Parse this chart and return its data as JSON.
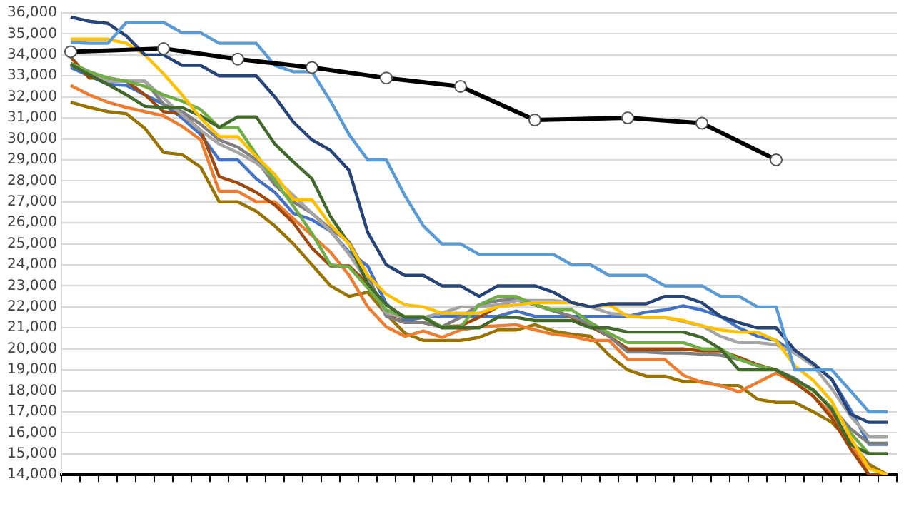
{
  "chart_data": {
    "type": "line",
    "categories": [
      null,
      null,
      null,
      null,
      null,
      null,
      null,
      null,
      null,
      null,
      null,
      null,
      null,
      null,
      null,
      null,
      null,
      null,
      null,
      null,
      null,
      null,
      null,
      null,
      null,
      null,
      null,
      null,
      null,
      null,
      null,
      null,
      null,
      null,
      null,
      null,
      null,
      null,
      null,
      null,
      null,
      null,
      null,
      null,
      null
    ],
    "ylim": [
      14000,
      36000
    ],
    "yticks": [
      {
        "value": 14000,
        "label": "14,000"
      },
      {
        "value": 15000,
        "label": "15,000"
      },
      {
        "value": 16000,
        "label": "16,000"
      },
      {
        "value": 17000,
        "label": "17,000"
      },
      {
        "value": 18000,
        "label": "18,000"
      },
      {
        "value": 19000,
        "label": "19,000"
      },
      {
        "value": 20000,
        "label": "20,000"
      },
      {
        "value": 21000,
        "label": "21,000"
      },
      {
        "value": 22000,
        "label": "22,000"
      },
      {
        "value": 23000,
        "label": "23,000"
      },
      {
        "value": 24000,
        "label": "24,000"
      },
      {
        "value": 25000,
        "label": "25,000"
      },
      {
        "value": 26000,
        "label": "26,000"
      },
      {
        "value": 27000,
        "label": "27,000"
      },
      {
        "value": 28000,
        "label": "28,000"
      },
      {
        "value": 29000,
        "label": "29,000"
      },
      {
        "value": 30000,
        "label": "30,000"
      },
      {
        "value": 31000,
        "label": "31,000"
      },
      {
        "value": 32000,
        "label": "32,000"
      },
      {
        "value": 33000,
        "label": "33,000"
      },
      {
        "value": 34000,
        "label": "34,000"
      },
      {
        "value": 35000,
        "label": "35,000"
      },
      {
        "value": 36000,
        "label": "36,000"
      }
    ],
    "grid": "y",
    "legend": false,
    "marker": "none",
    "line_style": "solid",
    "series": [
      {
        "color": "#5b9bd5",
        "values": [
          34600,
          34550,
          34550,
          35550,
          35550,
          35550,
          35050,
          35050,
          34550,
          34550,
          34550,
          33500,
          33200,
          33200,
          31800,
          30200,
          29000,
          29000,
          27300,
          25850,
          25000,
          25000,
          24500,
          24500,
          24500,
          24500,
          24500,
          24000,
          24000,
          23500,
          23500,
          23500,
          23000,
          23000,
          23000,
          22500,
          22500,
          22000,
          22000,
          19000,
          19000,
          19000,
          18000,
          17000,
          17000
        ]
      },
      {
        "color": "#264478",
        "values": [
          35800,
          35600,
          35500,
          34900,
          34000,
          34000,
          33500,
          33500,
          33000,
          33000,
          33000,
          32000,
          30800,
          29950,
          29450,
          28500,
          25550,
          24000,
          23500,
          23500,
          23000,
          23000,
          22500,
          23000,
          23000,
          23000,
          22700,
          22200,
          22000,
          22150,
          22150,
          22150,
          22500,
          22500,
          22200,
          21550,
          21250,
          21000,
          21000,
          19950,
          19300,
          18550,
          16900,
          16500,
          16500
        ]
      },
      {
        "color": "#ffc000",
        "values": [
          34750,
          34750,
          34750,
          34550,
          34000,
          33100,
          32100,
          31000,
          30100,
          30100,
          29150,
          28300,
          27100,
          27100,
          25900,
          25000,
          23500,
          22600,
          22100,
          22000,
          21700,
          21700,
          21700,
          22000,
          22100,
          22200,
          22200,
          22200,
          22000,
          22100,
          21550,
          21500,
          21500,
          21350,
          21100,
          20900,
          20800,
          20800,
          20400,
          19200,
          18500,
          17500,
          15800,
          14300,
          14000
        ]
      },
      {
        "color": "#43682b",
        "values": [
          33550,
          33050,
          32600,
          32100,
          31550,
          31500,
          31500,
          31100,
          30550,
          31050,
          31050,
          29750,
          28900,
          28100,
          26300,
          25000,
          23100,
          22100,
          21500,
          21500,
          21000,
          21000,
          21000,
          21500,
          21500,
          21350,
          21350,
          21350,
          21000,
          21000,
          20800,
          20800,
          20800,
          20800,
          20550,
          20000,
          19000,
          19000,
          19000,
          18550,
          18050,
          17100,
          15450,
          15000,
          15000
        ]
      },
      {
        "color": "#70ad47",
        "values": [
          33600,
          33200,
          32900,
          32750,
          32500,
          32100,
          31800,
          31400,
          30550,
          30550,
          29250,
          28000,
          26800,
          25500,
          24000,
          23900,
          22900,
          21850,
          21550,
          21550,
          21050,
          21050,
          22100,
          22500,
          22500,
          22100,
          21850,
          21850,
          21250,
          20750,
          20300,
          20300,
          20300,
          20300,
          20000,
          20000,
          19500,
          19200,
          19000,
          18550,
          18000,
          17200,
          16000,
          15000,
          15000
        ]
      },
      {
        "color": "#a5a5a5",
        "values": [
          33600,
          33200,
          32750,
          32750,
          32750,
          31950,
          31150,
          30400,
          29750,
          29350,
          28850,
          28100,
          27300,
          26450,
          25600,
          24500,
          23200,
          21700,
          21500,
          21500,
          21700,
          22000,
          22000,
          22100,
          22300,
          22300,
          22300,
          22200,
          22000,
          21700,
          21600,
          21500,
          21500,
          21300,
          21100,
          20600,
          20300,
          20300,
          20200,
          19800,
          19200,
          18100,
          16800,
          15800,
          15800
        ]
      },
      {
        "color": "#7f7f7f",
        "values": [
          33500,
          33100,
          32750,
          32750,
          32750,
          31650,
          31300,
          30700,
          29950,
          29600,
          29000,
          27800,
          27000,
          26450,
          25700,
          25100,
          23500,
          21550,
          21250,
          21250,
          21050,
          21500,
          22100,
          22300,
          22350,
          22100,
          21800,
          21550,
          21150,
          20600,
          19850,
          19850,
          19800,
          19800,
          19750,
          19700,
          19500,
          19200,
          19000,
          18600,
          18000,
          17200,
          16200,
          15500,
          15500
        ]
      },
      {
        "color": "#9e480e",
        "values": [
          33900,
          32900,
          32900,
          32750,
          32100,
          31300,
          31200,
          30400,
          28200,
          27900,
          27450,
          26850,
          26000,
          24800,
          23950,
          23950,
          23100,
          21650,
          21250,
          21250,
          21050,
          21100,
          21500,
          22000,
          22350,
          22100,
          21850,
          21500,
          21050,
          20600,
          20000,
          20000,
          20000,
          20000,
          19900,
          19900,
          19600,
          19250,
          19000,
          18400,
          17750,
          16700,
          15250,
          14000,
          14000
        ]
      },
      {
        "color": "#ed7d31",
        "values": [
          32550,
          32100,
          31750,
          31500,
          31300,
          31100,
          30600,
          29950,
          27500,
          27500,
          27000,
          27000,
          26200,
          25400,
          24600,
          23500,
          22000,
          21050,
          20600,
          20850,
          20550,
          20900,
          21050,
          21100,
          21150,
          20900,
          20700,
          20600,
          20400,
          20400,
          19500,
          19500,
          19500,
          18750,
          18400,
          18250,
          17950,
          18400,
          18850,
          18400,
          17750,
          16900,
          15600,
          14000,
          14000
        ]
      },
      {
        "color": "#997300",
        "values": [
          31750,
          31500,
          31300,
          31200,
          30500,
          29350,
          29250,
          28650,
          27000,
          27000,
          26550,
          25850,
          25000,
          24000,
          23000,
          22500,
          22700,
          21650,
          20750,
          20400,
          20400,
          20400,
          20550,
          20900,
          20900,
          21150,
          20850,
          20700,
          20600,
          19700,
          19000,
          18700,
          18700,
          18450,
          18450,
          18250,
          18250,
          17600,
          17450,
          17450,
          17000,
          16500,
          15550,
          14500,
          14000
        ]
      },
      {
        "color": "#4472c4",
        "values": [
          33400,
          33000,
          32600,
          32550,
          32100,
          31650,
          31000,
          30200,
          29000,
          29000,
          28100,
          27450,
          26450,
          26150,
          25600,
          24600,
          23950,
          22150,
          21350,
          21500,
          21550,
          21550,
          21550,
          21550,
          21800,
          21550,
          21550,
          21550,
          21550,
          21550,
          21550,
          21750,
          21850,
          22050,
          21850,
          21550,
          21000,
          20600,
          20400,
          19800,
          19300,
          18550,
          17100,
          15450,
          15450
        ]
      },
      {
        "color": "#000000",
        "marker": "circle",
        "values": [
          34150,
          null,
          null,
          null,
          null,
          34300,
          null,
          null,
          null,
          33800,
          null,
          null,
          null,
          33400,
          null,
          null,
          null,
          32900,
          null,
          null,
          null,
          32500,
          null,
          null,
          null,
          30900,
          null,
          null,
          null,
          null,
          31000,
          null,
          null,
          null,
          30750,
          null,
          null,
          null,
          29000,
          null,
          null,
          null,
          null,
          null,
          null
        ]
      }
    ]
  }
}
